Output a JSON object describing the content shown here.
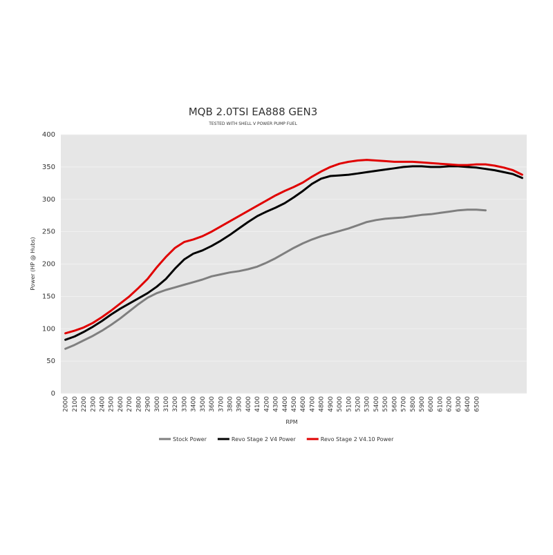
{
  "chart_data": {
    "type": "line",
    "title": "MQB 2.0TSI EA888  GEN3",
    "subtitle": "TESTED WITH SHELL V POWER PUMP FUEL",
    "x_label": "RPM",
    "y_label": "Power (HP @ Hubs)",
    "categories": [
      "2000",
      "2100",
      "2200",
      "2300",
      "2400",
      "2500",
      "2600",
      "2700",
      "2800",
      "2900",
      "3000",
      "3100",
      "3200",
      "3300",
      "3400",
      "3500",
      "3600",
      "3700",
      "3800",
      "3900",
      "4000",
      "4100",
      "4200",
      "4300",
      "4400",
      "4500",
      "4600",
      "4700",
      "4800",
      "4900",
      "5000",
      "5100",
      "5200",
      "5300",
      "5400",
      "5500",
      "5600",
      "5700",
      "5800",
      "5900",
      "6000",
      "6100",
      "6200",
      "6300",
      "6400",
      "6500",
      null,
      null,
      null,
      null,
      null
    ],
    "series": [
      {
        "name": "Stock Power",
        "color": "#7f7f7f",
        "values": [
          69,
          75,
          82,
          89,
          97,
          106,
          116,
          127,
          138,
          148,
          155,
          160,
          164,
          168,
          172,
          176,
          181,
          184,
          187,
          189,
          192,
          196,
          202,
          209,
          217,
          225,
          232,
          238,
          243,
          247,
          251,
          255,
          260,
          265,
          268,
          270,
          271,
          272,
          274,
          276,
          277,
          279,
          281,
          283,
          284,
          284,
          283,
          null,
          null,
          null,
          null
        ]
      },
      {
        "name": "Revo Stage 2 V4 Power",
        "color": "#000000",
        "values": [
          83,
          88,
          95,
          103,
          112,
          122,
          131,
          139,
          147,
          155,
          165,
          177,
          193,
          207,
          216,
          221,
          228,
          236,
          245,
          255,
          265,
          274,
          281,
          287,
          294,
          303,
          313,
          324,
          332,
          336,
          337,
          338,
          340,
          342,
          344,
          346,
          348,
          350,
          351,
          351,
          350,
          350,
          351,
          351,
          350,
          349,
          347,
          345,
          342,
          339,
          333
        ]
      },
      {
        "name": "Revo Stage 2 V4.10 Power",
        "color": "#e00000",
        "values": [
          93,
          97,
          102,
          109,
          118,
          128,
          139,
          150,
          163,
          177,
          195,
          211,
          225,
          234,
          238,
          243,
          250,
          258,
          266,
          274,
          282,
          290,
          298,
          306,
          313,
          319,
          326,
          335,
          343,
          350,
          355,
          358,
          360,
          361,
          360,
          359,
          358,
          358,
          358,
          357,
          356,
          355,
          354,
          353,
          353,
          354,
          354,
          352,
          349,
          345,
          338
        ]
      }
    ],
    "ylim": [
      0,
      400
    ],
    "yticks": [
      0,
      50,
      100,
      150,
      200,
      250,
      300,
      350,
      400
    ],
    "grid": true,
    "legend": "bottom"
  }
}
